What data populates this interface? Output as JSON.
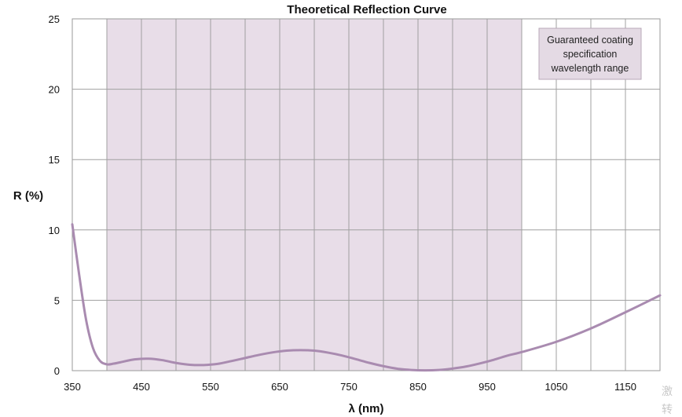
{
  "chart_data": {
    "type": "line",
    "title": "Theoretical Reflection Curve",
    "xlabel": "λ (nm)",
    "ylabel": "R (%)",
    "xlim": [
      350,
      1200
    ],
    "ylim": [
      0,
      25
    ],
    "xticks": [
      350,
      450,
      550,
      650,
      750,
      850,
      950,
      1050,
      1150
    ],
    "yticks": [
      0,
      5,
      10,
      15,
      20,
      25
    ],
    "grid": true,
    "series": [
      {
        "color": "#a98bb0",
        "x": [
          350,
          360,
          370,
          380,
          390,
          400,
          410,
          420,
          440,
          460,
          480,
          500,
          520,
          540,
          560,
          580,
          600,
          620,
          640,
          660,
          680,
          700,
          720,
          740,
          760,
          780,
          800,
          820,
          840,
          860,
          880,
          900,
          920,
          940,
          960,
          980,
          1000,
          1050,
          1100,
          1150,
          1200
        ],
        "y": [
          10.4,
          6.8,
          3.6,
          1.6,
          0.7,
          0.45,
          0.5,
          0.6,
          0.8,
          0.85,
          0.75,
          0.55,
          0.42,
          0.4,
          0.48,
          0.68,
          0.9,
          1.12,
          1.3,
          1.42,
          1.46,
          1.42,
          1.28,
          1.08,
          0.82,
          0.55,
          0.32,
          0.14,
          0.05,
          0.02,
          0.05,
          0.15,
          0.3,
          0.52,
          0.78,
          1.08,
          1.32,
          2.05,
          3.0,
          4.15,
          5.35
        ]
      }
    ],
    "shaded_region": {
      "x_range": [
        400,
        1000
      ],
      "color": "#e8dde8"
    },
    "annotation": {
      "lines": [
        "Guaranteed coating",
        "specification",
        "wavelength range"
      ],
      "placement": "top-right"
    }
  },
  "watermark": {
    "lines": [
      "激",
      "转"
    ]
  }
}
